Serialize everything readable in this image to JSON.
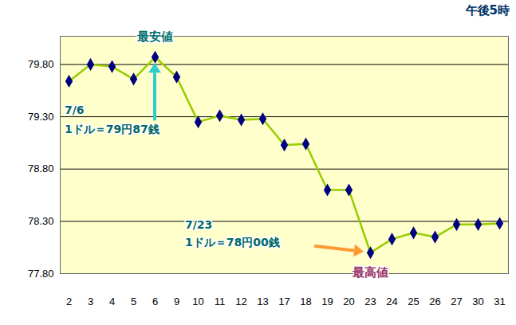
{
  "chart_data": {
    "type": "line",
    "title": "午後5時",
    "categories": [
      "2",
      "3",
      "4",
      "5",
      "6",
      "9",
      "10",
      "11",
      "12",
      "13",
      "17",
      "18",
      "19",
      "20",
      "23",
      "24",
      "25",
      "26",
      "27",
      "30",
      "31"
    ],
    "values": [
      79.64,
      79.8,
      79.78,
      79.66,
      79.87,
      79.68,
      79.25,
      79.31,
      79.27,
      79.28,
      79.03,
      79.04,
      78.6,
      78.6,
      78.0,
      78.13,
      78.19,
      78.15,
      78.27,
      78.27,
      78.28
    ],
    "color": "#99cc00",
    "marker": "diamond",
    "ylim": [
      77.8,
      80.07
    ],
    "yticks": [
      {
        "value": 77.8,
        "label": "77.80"
      },
      {
        "value": 78.3,
        "label": "78.30"
      },
      {
        "value": 78.8,
        "label": "78.80"
      },
      {
        "value": 79.3,
        "label": "79.30"
      },
      {
        "value": 79.8,
        "label": "79.80"
      }
    ],
    "grid": true,
    "annotations": [
      {
        "category": "6",
        "label": "最安値",
        "text": [
          "7/6",
          "1ドル＝79円87銭"
        ]
      },
      {
        "category": "23",
        "label": "最高値",
        "text": [
          "7/23",
          "1ドル＝78円00銭"
        ]
      }
    ]
  }
}
